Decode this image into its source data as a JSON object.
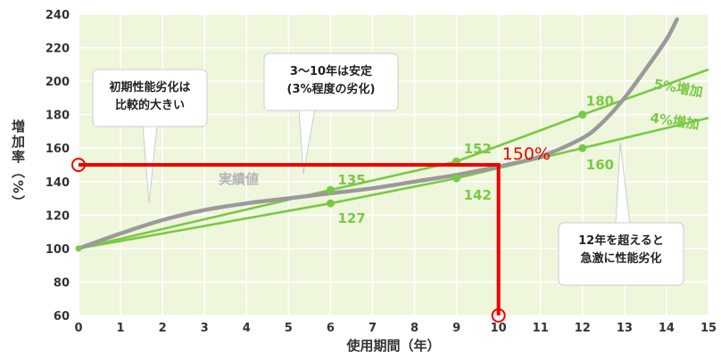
{
  "chart_data": {
    "type": "line",
    "xlabel": "使用期間（年）",
    "ylabel": "増加率（%）",
    "xlim": [
      0,
      15
    ],
    "ylim": [
      60,
      240
    ],
    "x_ticks": [
      0,
      1,
      2,
      3,
      4,
      5,
      6,
      7,
      8,
      9,
      10,
      11,
      12,
      13,
      14,
      15
    ],
    "y_ticks": [
      60,
      80,
      100,
      120,
      140,
      160,
      180,
      200,
      220,
      240
    ],
    "grid": true,
    "series": [
      {
        "name": "5%増加",
        "x": [
          0,
          6,
          9,
          12,
          15
        ],
        "y": [
          100,
          135,
          152,
          180,
          207
        ]
      },
      {
        "name": "4%増加",
        "x": [
          0,
          6,
          9,
          12,
          15
        ],
        "y": [
          100,
          127,
          142,
          160,
          178
        ]
      },
      {
        "name": "実績値",
        "x": [
          0,
          1,
          2,
          3,
          4,
          5,
          6,
          7,
          8,
          9,
          10,
          11,
          12,
          12.5,
          13,
          13.5,
          14,
          14.25
        ],
        "y": [
          100,
          109,
          117,
          123,
          127,
          130,
          133,
          136,
          140,
          144,
          149,
          155,
          166,
          176,
          190,
          207,
          225,
          237
        ]
      }
    ],
    "point_labels": [
      {
        "text": "135",
        "x": 6,
        "y": 135
      },
      {
        "text": "127",
        "x": 6,
        "y": 127
      },
      {
        "text": "152",
        "x": 9,
        "y": 152
      },
      {
        "text": "142",
        "x": 9,
        "y": 142
      },
      {
        "text": "180",
        "x": 12,
        "y": 180
      },
      {
        "text": "160",
        "x": 12,
        "y": 160
      }
    ],
    "series_labels": {
      "five_pct": "5%増加",
      "four_pct": "4%増加",
      "actual": "実績値"
    },
    "annotations": {
      "early": [
        "初期性能劣化は",
        "比較的大きい"
      ],
      "stable": [
        "3～10年は安定",
        "(3%程度の劣化)"
      ],
      "late": [
        "12年を超えると",
        "急激に性能劣化"
      ]
    },
    "highlight": {
      "x": 10,
      "y": 150,
      "label": "150%",
      "color": "#ee0000"
    },
    "colors": {
      "plot_bg": "#eef6dc",
      "grid": "#ffffff",
      "green_line": "#7ac943",
      "green_text": "#7ac943",
      "actual_line": "#9a9a9a",
      "actual_text": "#b5b5b5"
    }
  }
}
